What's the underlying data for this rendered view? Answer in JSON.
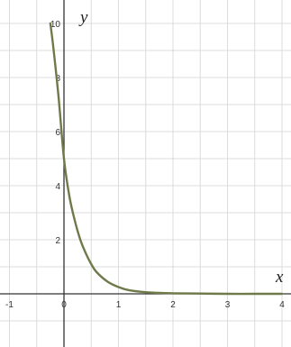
{
  "chart_data": {
    "type": "line",
    "title": "",
    "xlabel": "x",
    "ylabel": "y",
    "xlim": [
      -1,
      4
    ],
    "ylim": [
      -1,
      10
    ],
    "grid": true,
    "x_ticks": [
      -1,
      0,
      1,
      2,
      3,
      4
    ],
    "x_tick_labels": [
      "-1",
      "0",
      "1",
      "2",
      "3",
      "4"
    ],
    "y_ticks": [
      2,
      4,
      6,
      8,
      10
    ],
    "y_tick_labels": [
      "2",
      "4",
      "6",
      "8",
      "10"
    ],
    "series": [
      {
        "color": "#6f7a4a",
        "x": [
          -0.25,
          -0.2,
          -0.1,
          0,
          0.1,
          0.2,
          0.3,
          0.4,
          0.5,
          0.6,
          0.8,
          1.0,
          1.2,
          1.5,
          1.8,
          2.0,
          2.5,
          3.0,
          3.5,
          4.0
        ],
        "y": [
          10.0,
          9.2,
          7.3,
          5.0,
          3.6,
          2.7,
          2.0,
          1.5,
          1.1,
          0.8,
          0.45,
          0.25,
          0.13,
          0.06,
          0.03,
          0.02,
          0.01,
          0.0,
          0.0,
          0.0
        ]
      }
    ]
  }
}
